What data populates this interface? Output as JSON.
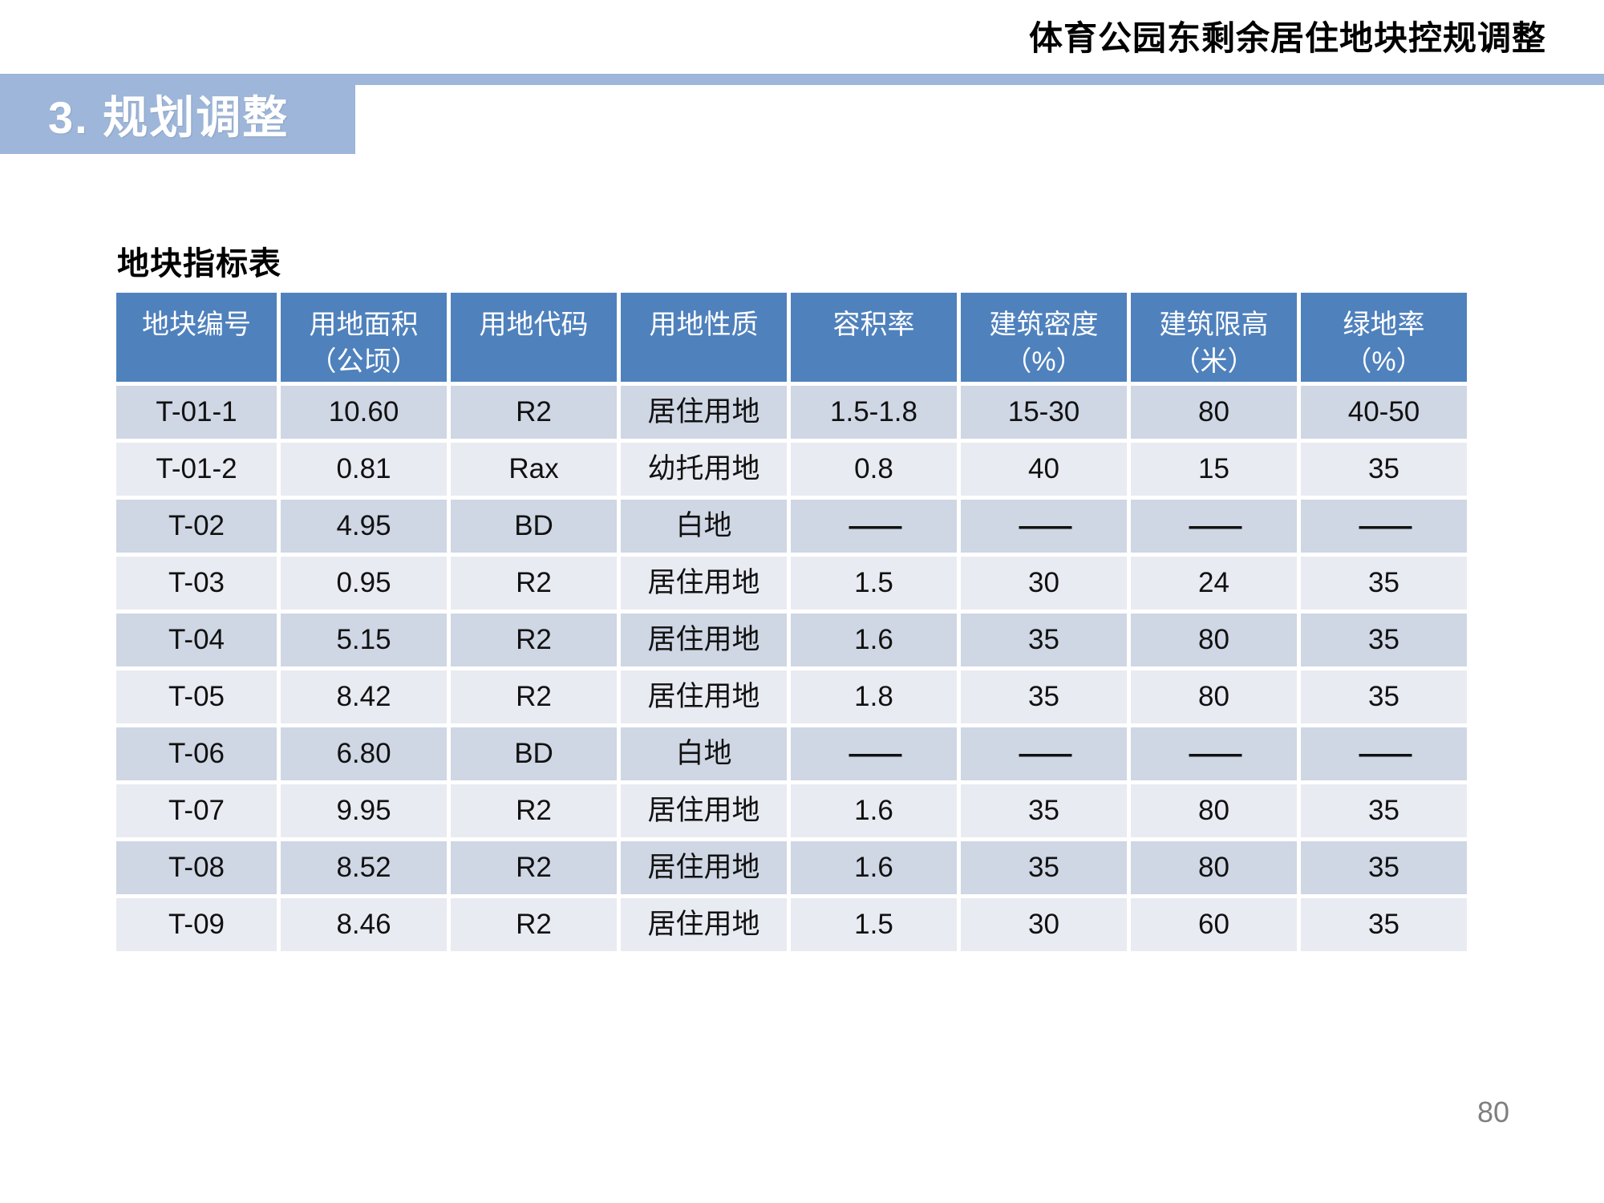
{
  "page": {
    "header_title": "体育公园东剩余居住地块控规调整",
    "section_banner": "3. 规划调整",
    "table_title": "地块指标表",
    "page_number": "80"
  },
  "colors": {
    "banner_blue": "#9db6d9",
    "table_header_blue": "#4f81bd",
    "row_band_dark": "#cfd6e4",
    "row_band_light": "#e9ebf2",
    "header_text": "#ffffff",
    "page_number_gray": "#7f7f7f"
  },
  "table": {
    "columns": [
      "地块编号",
      "用地面积\n（公顷）",
      "用地代码",
      "用地性质",
      "容积率",
      "建筑密度\n（%）",
      "建筑限高\n（米）",
      "绿地率\n（%）"
    ],
    "rows": [
      [
        "T-01-1",
        "10.60",
        "R2",
        "居住用地",
        "1.5-1.8",
        "15-30",
        "80",
        "40-50"
      ],
      [
        "T-01-2",
        "0.81",
        "Rax",
        "幼托用地",
        "0.8",
        "40",
        "15",
        "35"
      ],
      [
        "T-02",
        "4.95",
        "BD",
        "白地",
        "——",
        "——",
        "——",
        "——"
      ],
      [
        "T-03",
        "0.95",
        "R2",
        "居住用地",
        "1.5",
        "30",
        "24",
        "35"
      ],
      [
        "T-04",
        "5.15",
        "R2",
        "居住用地",
        "1.6",
        "35",
        "80",
        "35"
      ],
      [
        "T-05",
        "8.42",
        "R2",
        "居住用地",
        "1.8",
        "35",
        "80",
        "35"
      ],
      [
        "T-06",
        "6.80",
        "BD",
        "白地",
        "——",
        "——",
        "——",
        "——"
      ],
      [
        "T-07",
        "9.95",
        "R2",
        "居住用地",
        "1.6",
        "35",
        "80",
        "35"
      ],
      [
        "T-08",
        "8.52",
        "R2",
        "居住用地",
        "1.6",
        "35",
        "80",
        "35"
      ],
      [
        "T-09",
        "8.46",
        "R2",
        "居住用地",
        "1.5",
        "30",
        "60",
        "35"
      ]
    ]
  }
}
